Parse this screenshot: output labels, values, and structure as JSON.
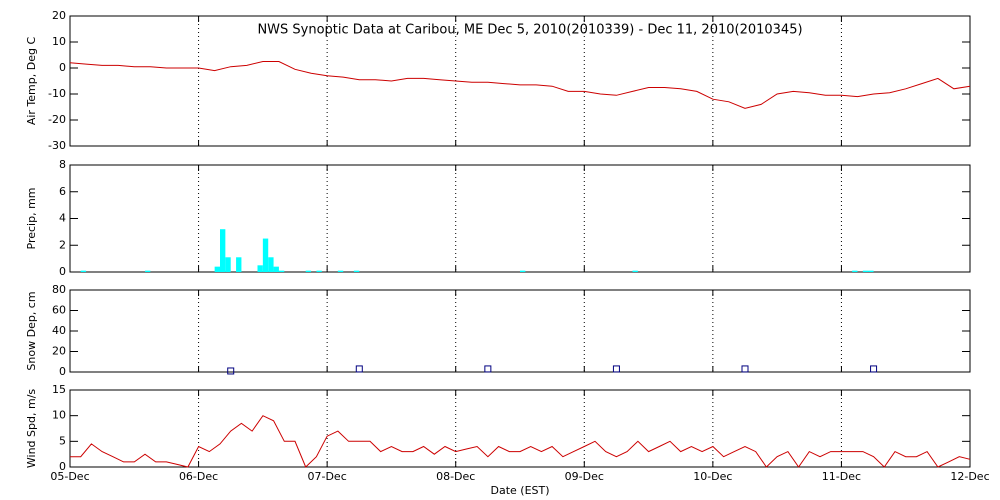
{
  "chart_data": [
    {
      "type": "line",
      "title": "NWS Synoptic Data at Caribou, ME   Dec  5, 2010(2010339) - Dec 11, 2010(2010345)",
      "y_label": "Air Temp, Deg C",
      "color": "#cc0000",
      "grid": true,
      "xlim": [
        0,
        168
      ],
      "xticks": [
        0,
        24,
        48,
        72,
        96,
        120,
        144,
        168
      ],
      "ylim": [
        -30,
        20
      ],
      "yticks": [
        -30,
        -20,
        -10,
        0,
        10,
        20
      ],
      "x": [
        0,
        3,
        6,
        9,
        12,
        15,
        18,
        21,
        24,
        27,
        30,
        33,
        36,
        39,
        42,
        45,
        48,
        51,
        54,
        57,
        60,
        63,
        66,
        69,
        72,
        75,
        78,
        81,
        84,
        87,
        90,
        93,
        96,
        99,
        102,
        105,
        108,
        111,
        114,
        117,
        120,
        123,
        126,
        129,
        132,
        135,
        138,
        141,
        144,
        147,
        150,
        153,
        156,
        159,
        162,
        165,
        168
      ],
      "values": [
        2,
        1.5,
        1,
        1,
        0.5,
        0.5,
        0,
        0,
        0,
        -1,
        0.5,
        1,
        2.5,
        2.5,
        -0.5,
        -2,
        -3,
        -3.5,
        -4.5,
        -4.5,
        -5,
        -4,
        -4,
        -4.5,
        -5,
        -5.5,
        -5.5,
        -6,
        -6.5,
        -6.5,
        -7,
        -9,
        -9,
        -10,
        -10.5,
        -9,
        -7.5,
        -7.5,
        -8,
        -9,
        -12,
        -13,
        -15.5,
        -14,
        -10,
        -9,
        -9.5,
        -10.5,
        -10.5,
        -11,
        -10,
        -9.5,
        -8,
        -6,
        -4,
        -8,
        -7
      ]
    },
    {
      "type": "bar",
      "y_label": "Precip, mm",
      "color": "#00ffff",
      "grid": true,
      "xlim": [
        0,
        168
      ],
      "xticks": [
        0,
        24,
        48,
        72,
        96,
        120,
        144,
        168
      ],
      "ylim": [
        0,
        8
      ],
      "yticks": [
        0,
        2,
        4,
        6,
        8
      ],
      "x": [
        2,
        14,
        27,
        28,
        29,
        31,
        35,
        36,
        37,
        38,
        39,
        44,
        46,
        50,
        53,
        84,
        105,
        146,
        148,
        149
      ],
      "values": [
        0.1,
        0.1,
        0.4,
        3.2,
        1.1,
        1.1,
        0.5,
        2.5,
        1.1,
        0.4,
        0.1,
        0.1,
        0.1,
        0.1,
        0.1,
        0.1,
        0.1,
        0.1,
        0.1,
        0.1
      ]
    },
    {
      "type": "scatter",
      "y_label": "Snow Dep, cm",
      "color": "#000080",
      "grid": true,
      "xlim": [
        0,
        168
      ],
      "xticks": [
        0,
        24,
        48,
        72,
        96,
        120,
        144,
        168
      ],
      "ylim": [
        0,
        80
      ],
      "yticks": [
        0,
        20,
        40,
        60,
        80
      ],
      "x": [
        30,
        54,
        78,
        102,
        126,
        150
      ],
      "values": [
        1,
        3,
        3,
        3,
        3,
        3
      ]
    },
    {
      "type": "line",
      "y_label": "Wind Spd, m/s",
      "x_label": "Date (EST)",
      "color": "#cc0000",
      "grid": true,
      "xlim": [
        0,
        168
      ],
      "xticks": [
        {
          "value": 0,
          "label": "05-Dec"
        },
        {
          "value": 24,
          "label": "06-Dec"
        },
        {
          "value": 48,
          "label": "07-Dec"
        },
        {
          "value": 72,
          "label": "08-Dec"
        },
        {
          "value": 96,
          "label": "09-Dec"
        },
        {
          "value": 120,
          "label": "10-Dec"
        },
        {
          "value": 144,
          "label": "11-Dec"
        },
        {
          "value": 168,
          "label": "12-Dec"
        }
      ],
      "ylim": [
        0,
        15
      ],
      "yticks": [
        0,
        5,
        10,
        15
      ],
      "x": [
        0,
        2,
        4,
        6,
        8,
        10,
        12,
        14,
        16,
        18,
        20,
        22,
        24,
        26,
        28,
        30,
        32,
        34,
        36,
        38,
        40,
        42,
        44,
        46,
        48,
        50,
        52,
        54,
        56,
        58,
        60,
        62,
        64,
        66,
        68,
        70,
        72,
        74,
        76,
        78,
        80,
        82,
        84,
        86,
        88,
        90,
        92,
        94,
        96,
        98,
        100,
        102,
        104,
        106,
        108,
        110,
        112,
        114,
        116,
        118,
        120,
        122,
        124,
        126,
        128,
        130,
        132,
        134,
        136,
        138,
        140,
        142,
        144,
        146,
        148,
        150,
        152,
        154,
        156,
        158,
        160,
        162,
        164,
        166,
        168
      ],
      "values": [
        2,
        2,
        4.5,
        3,
        2,
        1,
        1,
        2.5,
        1,
        1,
        0.5,
        0,
        4,
        3,
        4.5,
        7,
        8.5,
        7,
        10,
        9,
        5,
        5,
        0,
        2,
        6,
        7,
        5,
        5,
        5,
        3,
        4,
        3,
        3,
        4,
        2.5,
        4,
        3,
        3.5,
        4,
        2,
        4,
        3,
        3,
        4,
        3,
        4,
        2,
        3,
        4,
        5,
        3,
        2,
        3,
        5,
        3,
        4,
        5,
        3,
        4,
        3,
        4,
        2,
        3,
        4,
        3,
        0,
        2,
        3,
        0,
        3,
        2,
        3,
        3,
        3,
        3,
        2,
        0,
        3,
        2,
        2,
        3,
        0,
        1,
        2,
        1.5
      ]
    }
  ]
}
